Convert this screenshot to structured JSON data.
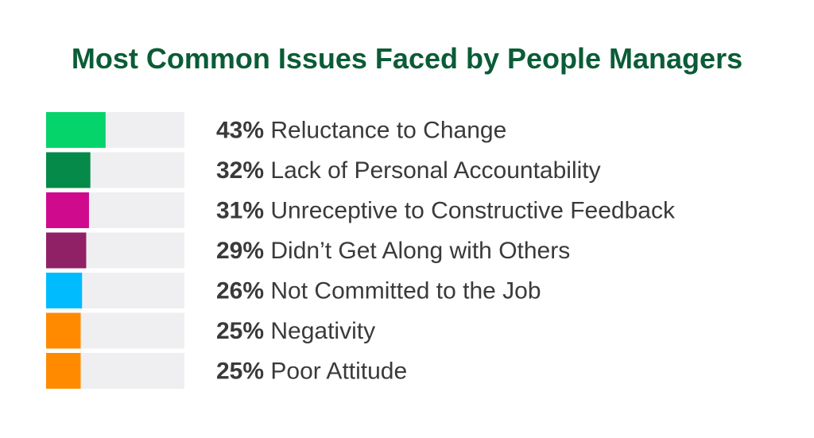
{
  "chart_data": {
    "type": "bar",
    "orientation": "horizontal",
    "title": "Most Common Issues Faced by People Managers",
    "xlim": [
      0,
      100
    ],
    "grid": false,
    "legend": "none",
    "categories": [
      "Reluctance to Change",
      "Lack of Personal Accountability",
      "Unreceptive to Constructive Feedback",
      "Didn’t Get Along with Others",
      "Not Committed to the Job",
      "Negativity",
      "Poor Attitude"
    ],
    "values": [
      43,
      32,
      31,
      29,
      26,
      25,
      25
    ],
    "labels": [
      "43%",
      "32%",
      "31%",
      "29%",
      "26%",
      "25%",
      "25%"
    ],
    "colors": [
      "#05d46a",
      "#068a4a",
      "#cf0a8d",
      "#912166",
      "#00bcff",
      "#ff8a00",
      "#ff8a00"
    ],
    "track_color": "#efeff1",
    "title_color": "#0a5c36"
  }
}
